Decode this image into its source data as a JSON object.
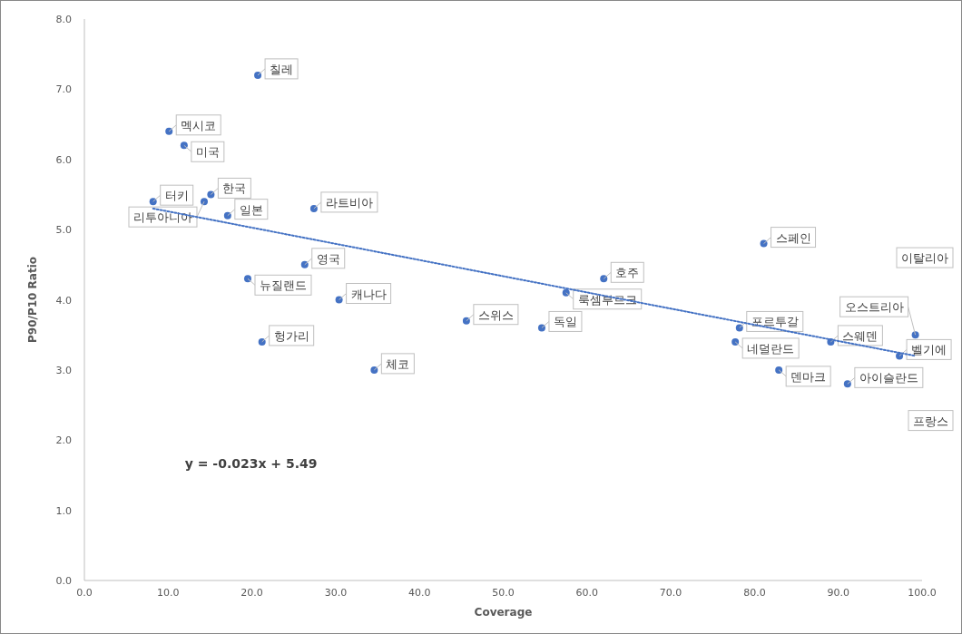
{
  "chart_data": {
    "type": "scatter",
    "xlabel": "Coverage",
    "ylabel": "P90/P10 Ratio",
    "xlim": [
      0,
      100
    ],
    "ylim": [
      0,
      8
    ],
    "xticks": [
      {
        "value": 0,
        "label": "0.0"
      },
      {
        "value": 10,
        "label": "10.0"
      },
      {
        "value": 20,
        "label": "20.0"
      },
      {
        "value": 30,
        "label": "30.0"
      },
      {
        "value": 40,
        "label": "40.0"
      },
      {
        "value": 50,
        "label": "50.0"
      },
      {
        "value": 60,
        "label": "60.0"
      },
      {
        "value": 70,
        "label": "70.0"
      },
      {
        "value": 80,
        "label": "80.0"
      },
      {
        "value": 90,
        "label": "90.0"
      },
      {
        "value": 100,
        "label": "100.0"
      }
    ],
    "yticks": [
      {
        "value": 0,
        "label": "0.0"
      },
      {
        "value": 1,
        "label": "1.0"
      },
      {
        "value": 2,
        "label": "2.0"
      },
      {
        "value": 3,
        "label": "3.0"
      },
      {
        "value": 4,
        "label": "4.0"
      },
      {
        "value": 5,
        "label": "5.0"
      },
      {
        "value": 6,
        "label": "6.0"
      },
      {
        "value": 7,
        "label": "7.0"
      },
      {
        "value": 8,
        "label": "8.0"
      }
    ],
    "grid": false,
    "marker": "circle",
    "series": [
      {
        "color": "#4472c4",
        "x": [
          20.7,
          10.1,
          11.9,
          15.1,
          8.2,
          14.3,
          17.1,
          27.4,
          26.3,
          19.5,
          30.4,
          21.2,
          34.6,
          45.6,
          54.6,
          62.0,
          57.5,
          81.1,
          78.2,
          77.7,
          89.1,
          82.9,
          91.1,
          97.3,
          99.2
        ],
        "values": [
          7.2,
          6.4,
          6.2,
          5.5,
          5.4,
          5.4,
          5.2,
          5.3,
          4.5,
          4.3,
          4.0,
          3.4,
          3.0,
          3.7,
          3.6,
          4.3,
          4.1,
          4.8,
          3.6,
          3.4,
          3.4,
          3.0,
          2.8,
          3.2,
          3.5
        ]
      },
      {
        "type": "line",
        "color": "#4472c4",
        "line_style": "dotted",
        "marker": "none",
        "x": [
          8.2,
          99.2
        ],
        "values": [
          5.3,
          3.2
        ]
      }
    ],
    "annotations": [
      "y = -0.023x + 5.49",
      {
        "text": "칠레",
        "x": 20.7,
        "y": 7.2
      },
      {
        "text": "멕시코",
        "x": 10.1,
        "y": 6.4
      },
      {
        "text": "미국",
        "x": 11.9,
        "y": 6.2
      },
      {
        "text": "한국",
        "x": 15.1,
        "y": 5.5
      },
      {
        "text": "터키",
        "x": 8.2,
        "y": 5.4
      },
      {
        "text": "리투아니아",
        "x": 14.3,
        "y": 5.4
      },
      {
        "text": "일본",
        "x": 17.1,
        "y": 5.2
      },
      {
        "text": "라트비아",
        "x": 27.4,
        "y": 5.3
      },
      {
        "text": "영국",
        "x": 26.3,
        "y": 4.5
      },
      {
        "text": "뉴질랜드",
        "x": 19.5,
        "y": 4.3
      },
      {
        "text": "캐나다",
        "x": 30.4,
        "y": 4.0
      },
      {
        "text": "헝가리",
        "x": 21.2,
        "y": 3.4
      },
      {
        "text": "체코",
        "x": 34.6,
        "y": 3.0
      },
      {
        "text": "스위스",
        "x": 45.6,
        "y": 3.7
      },
      {
        "text": "독일",
        "x": 54.6,
        "y": 3.6
      },
      {
        "text": "호주",
        "x": 62.0,
        "y": 4.3
      },
      {
        "text": "룩셈부르크",
        "x": 57.5,
        "y": 4.1
      },
      {
        "text": "스페인",
        "x": 81.1,
        "y": 4.8
      },
      {
        "text": "포르투갈",
        "x": 78.2,
        "y": 3.6
      },
      {
        "text": "네덜란드",
        "x": 77.7,
        "y": 3.4
      },
      {
        "text": "스웨덴",
        "x": 89.1,
        "y": 3.4
      },
      {
        "text": "덴마크",
        "x": 82.9,
        "y": 3.0
      },
      {
        "text": "아이슬란드",
        "x": 91.1,
        "y": 2.8
      },
      {
        "text": "벨기에",
        "x": 97.3,
        "y": 3.2
      },
      {
        "text": "오스트리아",
        "x": 99.2,
        "y": 3.5
      },
      "이탈리아",
      "프랑스"
    ]
  }
}
